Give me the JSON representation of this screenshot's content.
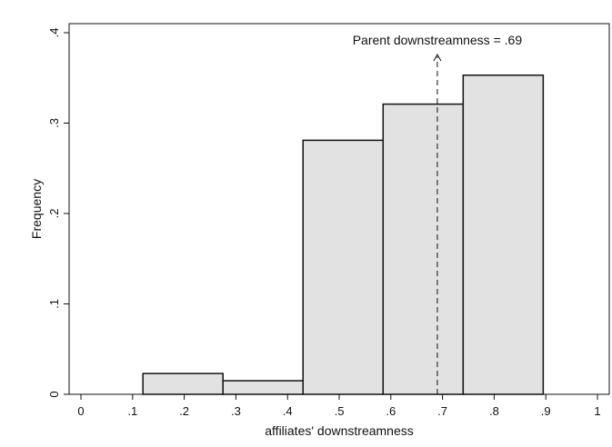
{
  "chart_data": {
    "type": "bar",
    "title": "",
    "xlabel": "affiliates' downstreamness",
    "ylabel": "Frequency",
    "xlim": [
      0,
      1
    ],
    "ylim": [
      0,
      0.4
    ],
    "grid": false,
    "x_ticks": [
      {
        "value": 0,
        "label": "0"
      },
      {
        "value": 0.1,
        "label": ".1"
      },
      {
        "value": 0.2,
        "label": ".2"
      },
      {
        "value": 0.3,
        "label": ".3"
      },
      {
        "value": 0.4,
        "label": ".4"
      },
      {
        "value": 0.5,
        "label": ".5"
      },
      {
        "value": 0.6,
        "label": ".6"
      },
      {
        "value": 0.7,
        "label": ".7"
      },
      {
        "value": 0.8,
        "label": ".8"
      },
      {
        "value": 0.9,
        "label": ".9"
      },
      {
        "value": 1,
        "label": "1"
      }
    ],
    "y_ticks": [
      {
        "value": 0,
        "label": "0"
      },
      {
        "value": 0.1,
        "label": ".1"
      },
      {
        "value": 0.2,
        "label": ".2"
      },
      {
        "value": 0.3,
        "label": ".3"
      },
      {
        "value": 0.4,
        "label": ".4"
      }
    ],
    "bins": [
      {
        "x0": 0.12,
        "x1": 0.275,
        "value": 0.023
      },
      {
        "x0": 0.275,
        "x1": 0.43,
        "value": 0.015
      },
      {
        "x0": 0.43,
        "x1": 0.585,
        "value": 0.281
      },
      {
        "x0": 0.585,
        "x1": 0.74,
        "value": 0.321
      },
      {
        "x0": 0.74,
        "x1": 0.895,
        "value": 0.353
      }
    ],
    "reference_line": {
      "x": 0.69,
      "label": "Parent downstreamness = .69",
      "style": "dashed-arrow"
    },
    "colors": {
      "bar_fill": "#e2e2e2",
      "bar_stroke": "#111111"
    }
  }
}
